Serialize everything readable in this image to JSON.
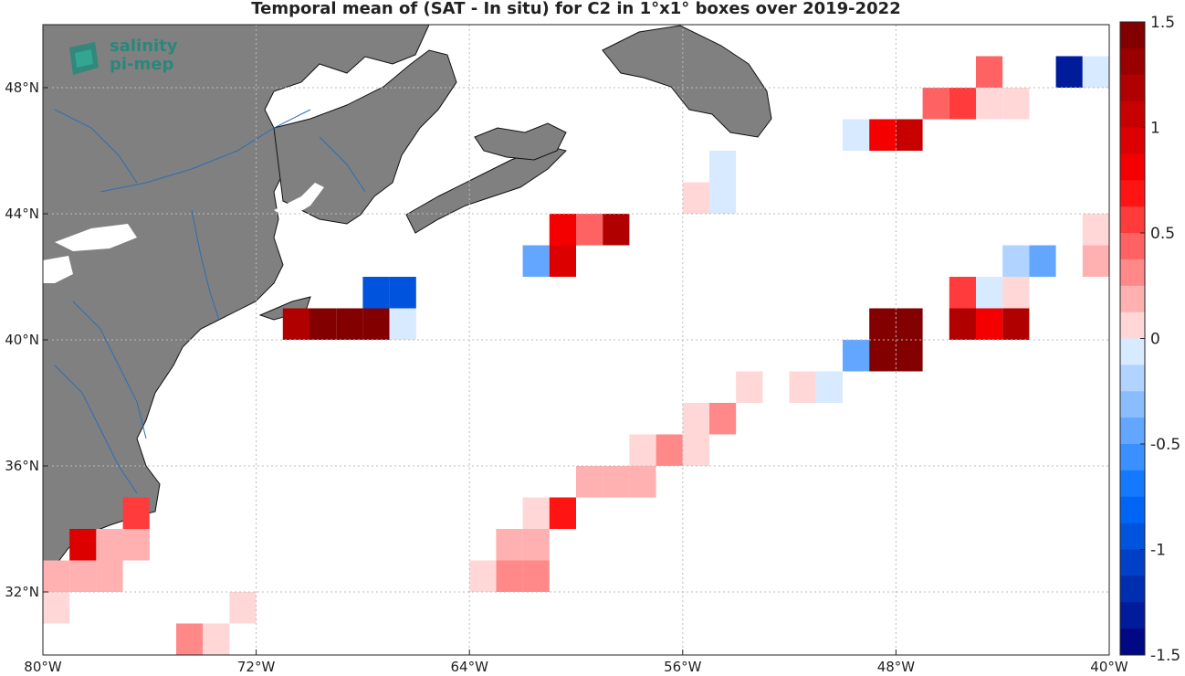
{
  "title": "Temporal mean of (SAT - In situ) for C2 in 1°x1° boxes over 2019-2022",
  "logo": {
    "line1": "salinity",
    "line2": "pi-mep"
  },
  "map": {
    "lon_range": [
      -80,
      -40
    ],
    "lat_range": [
      30,
      50
    ],
    "grid": true,
    "land_color": "#808080",
    "river_color": "#2a6fb0",
    "xticks": [
      {
        "value": -80,
        "label": "80°W"
      },
      {
        "value": -72,
        "label": "72°W"
      },
      {
        "value": -64,
        "label": "64°W"
      },
      {
        "value": -56,
        "label": "56°W"
      },
      {
        "value": -48,
        "label": "48°W"
      },
      {
        "value": -40,
        "label": "40°W"
      }
    ],
    "yticks": [
      {
        "value": 32,
        "label": "32°N"
      },
      {
        "value": 36,
        "label": "36°N"
      },
      {
        "value": 40,
        "label": "40°N"
      },
      {
        "value": 44,
        "label": "44°N"
      },
      {
        "value": 48,
        "label": "48°N"
      }
    ]
  },
  "colorbar": {
    "range": [
      -1.5,
      1.5
    ],
    "ticks": [
      "1.5",
      "1",
      "0.5",
      "0",
      "-0.5",
      "-1",
      "-1.5"
    ],
    "tick_values": [
      1.5,
      1,
      0.5,
      0,
      -0.5,
      -1,
      -1.5
    ]
  },
  "chart_data": {
    "type": "heatmap",
    "title": "Temporal mean of (SAT - In situ) for C2 in 1°x1° boxes over 2019-2022",
    "cell_size_deg": 1,
    "cells": [
      {
        "lon": -41.5,
        "lat": 48.5,
        "value": -1.3
      },
      {
        "lon": -40.5,
        "lat": 48.5,
        "value": -0.1
      },
      {
        "lon": -44.5,
        "lat": 48.5,
        "value": 0.4
      },
      {
        "lon": -46.5,
        "lat": 47.5,
        "value": 0.4
      },
      {
        "lon": -45.5,
        "lat": 47.5,
        "value": 0.6
      },
      {
        "lon": -44.5,
        "lat": 47.5,
        "value": 0.1
      },
      {
        "lon": -43.5,
        "lat": 47.5,
        "value": 0.1
      },
      {
        "lon": -49.5,
        "lat": 46.5,
        "value": -0.1
      },
      {
        "lon": -48.5,
        "lat": 46.5,
        "value": 0.8
      },
      {
        "lon": -47.5,
        "lat": 46.5,
        "value": 1.0
      },
      {
        "lon": -54.5,
        "lat": 45.5,
        "value": -0.1
      },
      {
        "lon": -55.5,
        "lat": 44.5,
        "value": 0.1
      },
      {
        "lon": -54.5,
        "lat": 44.5,
        "value": -0.1
      },
      {
        "lon": -60.5,
        "lat": 43.5,
        "value": 0.8
      },
      {
        "lon": -59.5,
        "lat": 43.5,
        "value": 0.4
      },
      {
        "lon": -58.5,
        "lat": 43.5,
        "value": 1.2
      },
      {
        "lon": -61.5,
        "lat": 42.5,
        "value": -0.4
      },
      {
        "lon": -60.5,
        "lat": 42.5,
        "value": 0.9
      },
      {
        "lon": -67.5,
        "lat": 41.5,
        "value": -0.9
      },
      {
        "lon": -66.5,
        "lat": 41.5,
        "value": -1.0
      },
      {
        "lon": -70.5,
        "lat": 40.5,
        "value": 1.2
      },
      {
        "lon": -69.5,
        "lat": 40.5,
        "value": 1.5
      },
      {
        "lon": -68.5,
        "lat": 40.5,
        "value": 1.5
      },
      {
        "lon": -67.5,
        "lat": 40.5,
        "value": 1.5
      },
      {
        "lon": -66.5,
        "lat": 40.5,
        "value": -0.1
      },
      {
        "lon": -40.5,
        "lat": 43.5,
        "value": 0.1
      },
      {
        "lon": -43.5,
        "lat": 42.5,
        "value": -0.2
      },
      {
        "lon": -42.5,
        "lat": 42.5,
        "value": -0.4
      },
      {
        "lon": -40.5,
        "lat": 42.5,
        "value": 0.2
      },
      {
        "lon": -45.5,
        "lat": 41.5,
        "value": 0.5
      },
      {
        "lon": -44.5,
        "lat": 41.5,
        "value": -0.1
      },
      {
        "lon": -43.5,
        "lat": 41.5,
        "value": 0.1
      },
      {
        "lon": -48.5,
        "lat": 40.5,
        "value": 1.5
      },
      {
        "lon": -47.5,
        "lat": 40.5,
        "value": 1.5
      },
      {
        "lon": -45.5,
        "lat": 40.5,
        "value": 1.2
      },
      {
        "lon": -44.5,
        "lat": 40.5,
        "value": 0.8
      },
      {
        "lon": -43.5,
        "lat": 40.5,
        "value": 1.2
      },
      {
        "lon": -49.5,
        "lat": 39.5,
        "value": -0.4
      },
      {
        "lon": -48.5,
        "lat": 39.5,
        "value": 1.5
      },
      {
        "lon": -47.5,
        "lat": 39.5,
        "value": 1.5
      },
      {
        "lon": -53.5,
        "lat": 38.5,
        "value": 0.1
      },
      {
        "lon": -51.5,
        "lat": 38.5,
        "value": 0.1
      },
      {
        "lon": -50.5,
        "lat": 38.5,
        "value": -0.1
      },
      {
        "lon": -55.5,
        "lat": 37.5,
        "value": 0.1
      },
      {
        "lon": -54.5,
        "lat": 37.5,
        "value": 0.3
      },
      {
        "lon": -57.5,
        "lat": 36.5,
        "value": 0.1
      },
      {
        "lon": -56.5,
        "lat": 36.5,
        "value": 0.3
      },
      {
        "lon": -55.5,
        "lat": 36.5,
        "value": 0.1
      },
      {
        "lon": -59.5,
        "lat": 35.5,
        "value": 0.2
      },
      {
        "lon": -58.5,
        "lat": 35.5,
        "value": 0.2
      },
      {
        "lon": -57.5,
        "lat": 35.5,
        "value": 0.2
      },
      {
        "lon": -61.5,
        "lat": 34.5,
        "value": 0.1
      },
      {
        "lon": -60.5,
        "lat": 34.5,
        "value": 0.7
      },
      {
        "lon": -62.5,
        "lat": 33.5,
        "value": 0.2
      },
      {
        "lon": -61.5,
        "lat": 33.5,
        "value": 0.2
      },
      {
        "lon": -62.5,
        "lat": 32.5,
        "value": 0.3
      },
      {
        "lon": -61.5,
        "lat": 32.5,
        "value": 0.3
      },
      {
        "lon": -63.5,
        "lat": 32.5,
        "value": 0.1
      },
      {
        "lon": -76.5,
        "lat": 34.5,
        "value": 0.6
      },
      {
        "lon": -78.5,
        "lat": 33.5,
        "value": 0.9
      },
      {
        "lon": -77.5,
        "lat": 33.5,
        "value": 0.2
      },
      {
        "lon": -76.5,
        "lat": 33.5,
        "value": 0.2
      },
      {
        "lon": -79.5,
        "lat": 32.5,
        "value": 0.2
      },
      {
        "lon": -78.5,
        "lat": 32.5,
        "value": 0.2
      },
      {
        "lon": -77.5,
        "lat": 32.5,
        "value": 0.2
      },
      {
        "lon": -79.5,
        "lat": 31.5,
        "value": 0.1
      },
      {
        "lon": -72.5,
        "lat": 31.5,
        "value": 0.1
      },
      {
        "lon": -74.5,
        "lat": 30.5,
        "value": 0.3
      },
      {
        "lon": -73.5,
        "lat": 30.5,
        "value": 0.1
      }
    ]
  }
}
